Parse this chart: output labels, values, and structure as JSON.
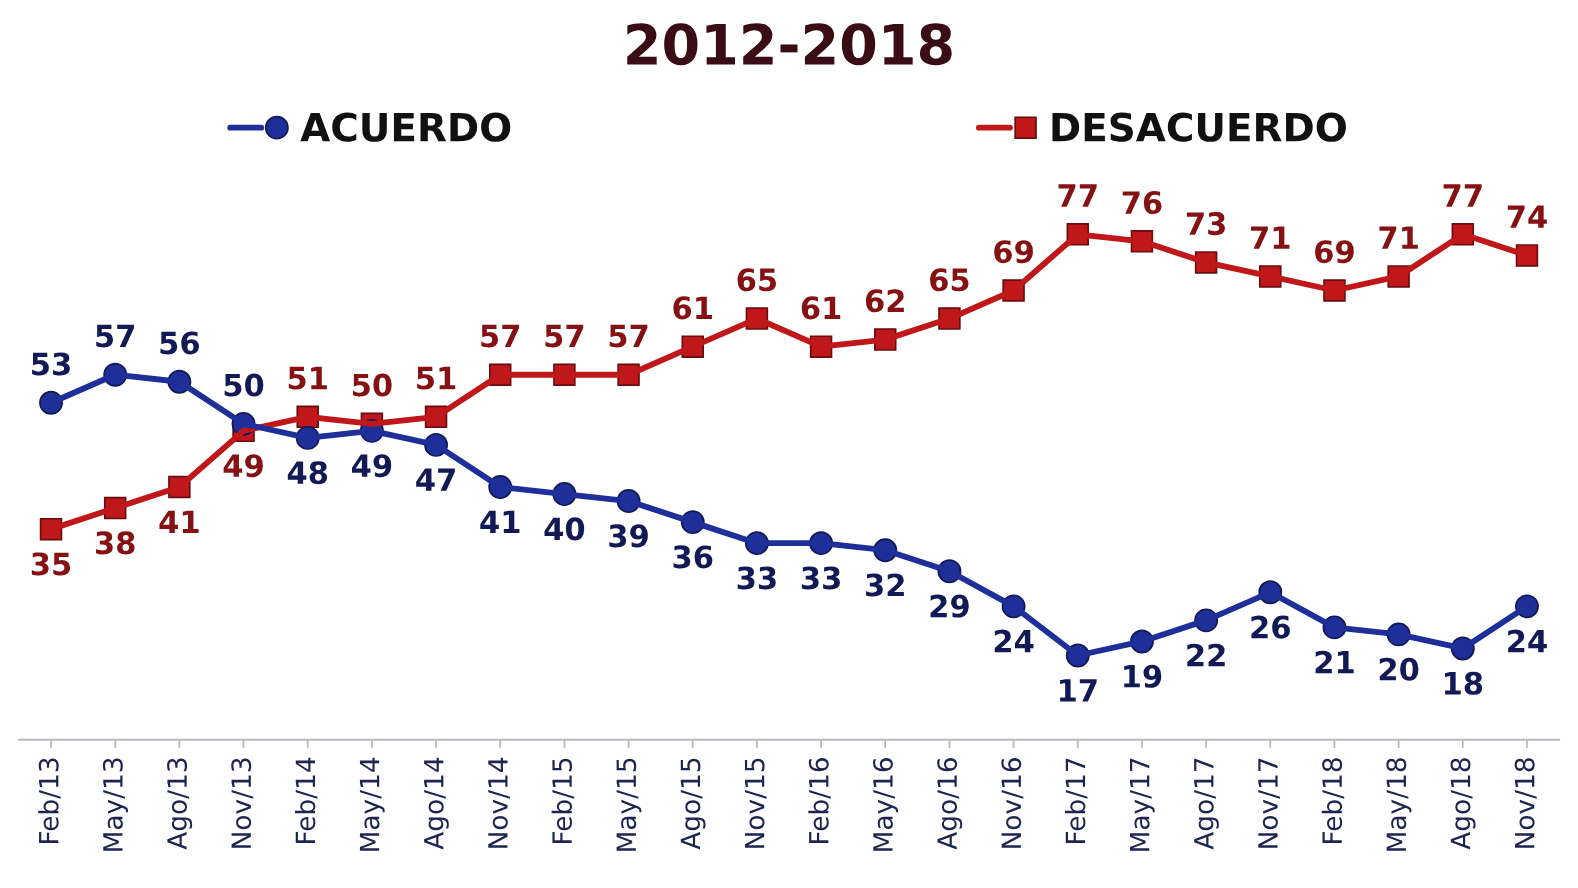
{
  "chart_data": {
    "type": "line",
    "title": "2012-2018",
    "categories": [
      "Feb/13",
      "May/13",
      "Ago/13",
      "Nov/13",
      "Feb/14",
      "May/14",
      "Ago/14",
      "Nov/14",
      "Feb/15",
      "May/15",
      "Ago/15",
      "Nov/15",
      "Feb/16",
      "May/16",
      "Ago/16",
      "Nov/16",
      "Feb/17",
      "May/17",
      "Ago/17",
      "Nov/17",
      "Feb/18",
      "May/18",
      "Ago/18",
      "Nov/18"
    ],
    "series": [
      {
        "name": "ACUERDO",
        "color": "#1f2f9a",
        "marker": "circle",
        "values": [
          53,
          57,
          56,
          50,
          48,
          49,
          47,
          41,
          40,
          39,
          36,
          33,
          33,
          32,
          29,
          24,
          17,
          19,
          22,
          26,
          21,
          20,
          18,
          24
        ]
      },
      {
        "name": "DESACUERDO",
        "color": "#c0181a",
        "marker": "square",
        "values": [
          35,
          38,
          41,
          49,
          51,
          50,
          51,
          57,
          57,
          57,
          61,
          65,
          61,
          62,
          65,
          69,
          77,
          76,
          73,
          71,
          69,
          71,
          77,
          74
        ]
      }
    ],
    "data_labels": true,
    "legend": "top",
    "line_style": "solid",
    "tick_labels": "x"
  }
}
